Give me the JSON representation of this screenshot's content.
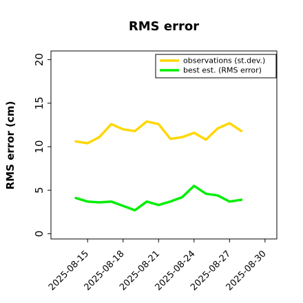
{
  "chart_data": {
    "type": "line",
    "title": "RMS error",
    "xlabel": "",
    "ylabel": "RMS error (cm)",
    "ylim": [
      -0.6,
      21
    ],
    "yticks": [
      0,
      5,
      10,
      15,
      20
    ],
    "xticks": [
      "2025-08-15",
      "2025-08-18",
      "2025-08-21",
      "2025-08-24",
      "2025-08-27",
      "2025-08-30"
    ],
    "highlight_tick": "2025-08-21",
    "highlight_color": "#228B22",
    "x": [
      "2025-08-14",
      "2025-08-15",
      "2025-08-16",
      "2025-08-17",
      "2025-08-18",
      "2025-08-19",
      "2025-08-20",
      "2025-08-21",
      "2025-08-22",
      "2025-08-23",
      "2025-08-24",
      "2025-08-25",
      "2025-08-26",
      "2025-08-27",
      "2025-08-28"
    ],
    "series": [
      {
        "name": "observations (st.dev.)",
        "color": "#FFD700",
        "values": [
          10.6,
          10.4,
          11.1,
          12.6,
          12.0,
          11.8,
          12.9,
          12.6,
          10.9,
          11.1,
          11.6,
          10.8,
          12.1,
          12.7,
          11.8
        ]
      },
      {
        "name": "best est. (RMS error)",
        "color": "#00EE00",
        "values": [
          4.1,
          3.7,
          3.6,
          3.7,
          3.2,
          2.7,
          3.7,
          3.3,
          3.7,
          4.2,
          5.5,
          4.6,
          4.4,
          3.7,
          3.9
        ]
      }
    ],
    "grid": false,
    "legend_position": "top-right"
  }
}
